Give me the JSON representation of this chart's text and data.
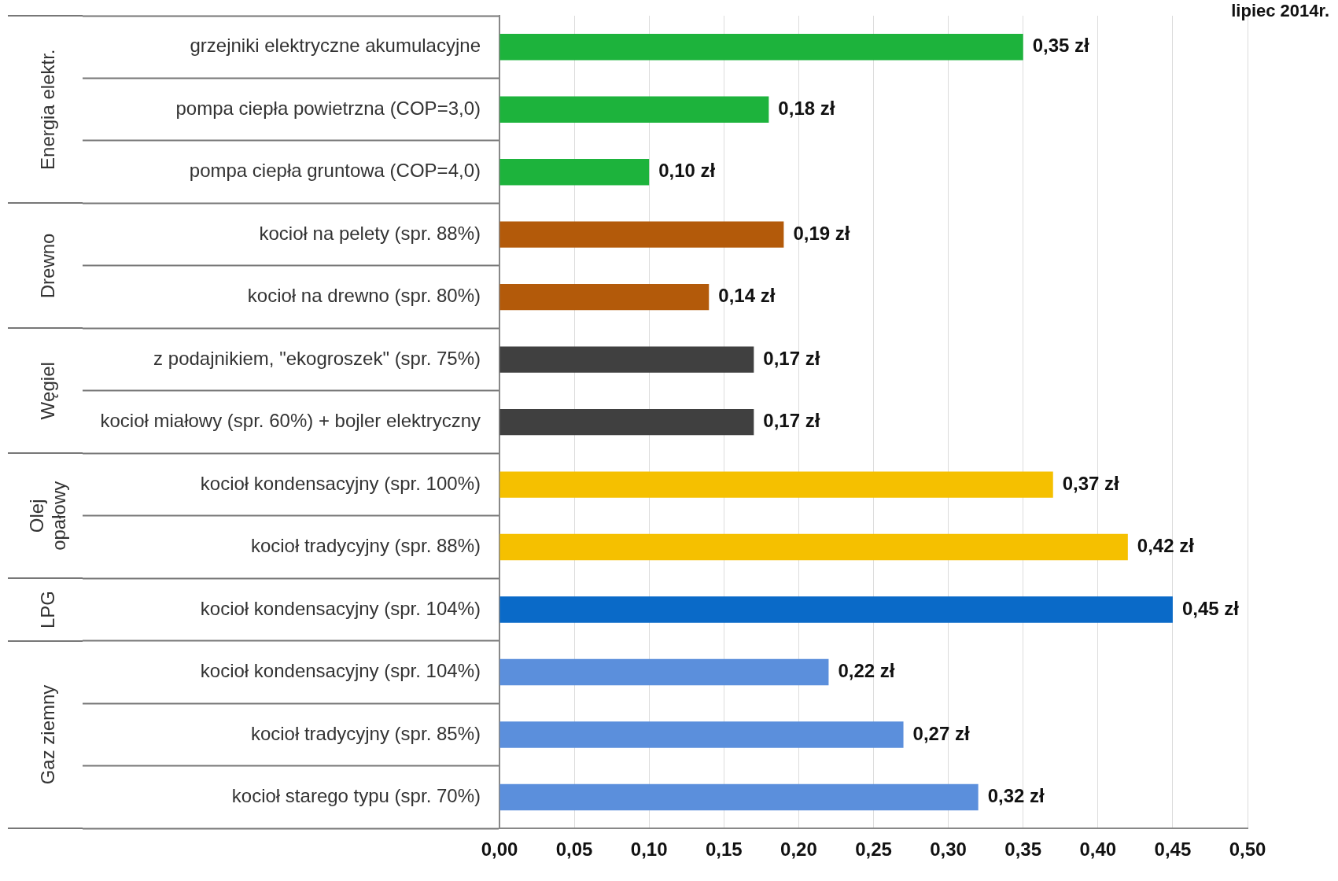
{
  "chart_data": {
    "type": "bar",
    "orientation": "horizontal",
    "categories": [
      "grzejniki elektryczne akumulacyjne",
      "pompa ciepła powietrzna (COP=3,0)",
      "pompa ciepła gruntowa (COP=4,0)",
      "kocioł na pelety (spr. 88%)",
      "kocioł na drewno (spr. 80%)",
      "z podajnikiem, \"ekogroszek\" (spr. 75%)",
      "kocioł miałowy (spr. 60%) + bojler elektryczny",
      "kocioł kondensacyjny (spr. 100%)",
      "kocioł tradycyjny (spr. 88%)",
      "kocioł kondensacyjny (spr. 104%)",
      "kocioł kondensacyjny (spr. 104%)",
      "kocioł tradycyjny (spr. 85%)",
      "kocioł starego typu (spr. 70%)"
    ],
    "series": [
      {
        "values": [
          0.35,
          0.18,
          0.1,
          0.19,
          0.14,
          0.17,
          0.17,
          0.37,
          0.42,
          0.45,
          0.22,
          0.27,
          0.32
        ],
        "colors": [
          "#1db33c",
          "#1db33c",
          "#1db33c",
          "#b35a0a",
          "#b35a0a",
          "#404040",
          "#404040",
          "#f5c000",
          "#f5c000",
          "#0a6ac8",
          "#5b8fdc",
          "#5b8fdc",
          "#5b8fdc"
        ],
        "value_labels": [
          "0,35 zł",
          "0,18 zł",
          "0,10 zł",
          "0,19 zł",
          "0,14 zł",
          "0,17 zł",
          "0,17 zł",
          "0,37 zł",
          "0,42 zł",
          "0,45 zł",
          "0,22 zł",
          "0,27 zł",
          "0,32 zł"
        ]
      }
    ],
    "xlim": [
      0,
      0.5
    ],
    "xticks": [
      {
        "value": 0,
        "label": "0,00"
      },
      {
        "value": 0.05,
        "label": "0,05"
      },
      {
        "value": 0.1,
        "label": "0,10"
      },
      {
        "value": 0.15,
        "label": "0,15"
      },
      {
        "value": 0.2,
        "label": "0,20"
      },
      {
        "value": 0.25,
        "label": "0,25"
      },
      {
        "value": 0.3,
        "label": "0,30"
      },
      {
        "value": 0.35,
        "label": "0,35"
      },
      {
        "value": 0.4,
        "label": "0,40"
      },
      {
        "value": 0.45,
        "label": "0,45"
      },
      {
        "value": 0.5,
        "label": "0,50"
      }
    ],
    "grid": "x",
    "legend": false,
    "annotations": [
      "lipiec 2014r.",
      "Energia elektr.",
      "Drewno",
      "Węgiel",
      "Olej\nopałowy",
      "LPG",
      "Gaz ziemny"
    ]
  }
}
